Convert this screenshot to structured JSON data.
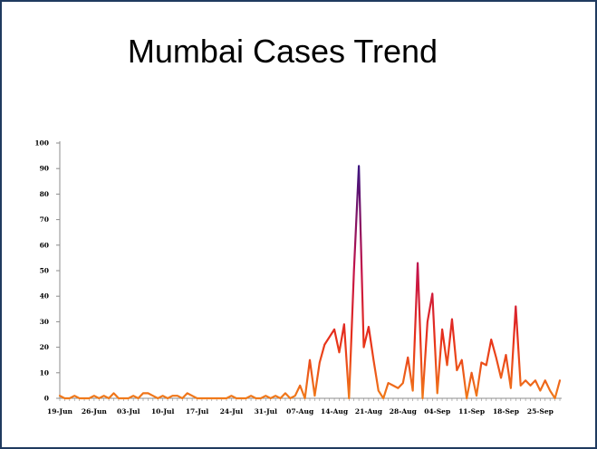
{
  "slide": {
    "title": "Mumbai Cases Trend"
  },
  "chart_data": {
    "type": "line",
    "title": "Mumbai Cases Trend",
    "xlabel": "",
    "ylabel": "",
    "ylim": [
      0,
      100
    ],
    "yticks": [
      0,
      10,
      20,
      30,
      40,
      50,
      60,
      70,
      80,
      90,
      100
    ],
    "x_tick_labels": [
      "19-Jun",
      "26-Jun",
      "03-Jul",
      "10-Jul",
      "17-Jul",
      "24-Jul",
      "31-Jul",
      "07-Aug",
      "14-Aug",
      "21-Aug",
      "28-Aug",
      "04-Sep",
      "11-Sep",
      "18-Sep",
      "25-Sep"
    ],
    "x_start": "19-Jun",
    "grid": false,
    "legend": "none",
    "line_gradient": [
      "#f07a1a",
      "#e8311a",
      "#c4124a",
      "#3a1480"
    ],
    "series": [
      {
        "values": [
          1,
          0,
          0,
          1,
          0,
          0,
          0,
          1,
          0,
          1,
          0,
          2,
          0,
          0,
          0,
          1,
          0,
          2,
          2,
          1,
          0,
          1,
          0,
          1,
          1,
          0,
          2,
          1,
          0,
          0,
          0,
          0,
          0,
          0,
          0,
          1,
          0,
          0,
          0,
          1,
          0,
          0,
          1,
          0,
          1,
          0,
          2,
          0,
          1,
          5,
          0,
          15,
          1,
          14,
          21,
          24,
          27,
          18,
          29,
          0,
          50,
          91,
          20,
          28,
          15,
          3,
          0,
          6,
          5,
          4,
          6,
          16,
          3,
          53,
          0,
          30,
          41,
          2,
          27,
          13,
          31,
          11,
          15,
          0,
          10,
          1,
          14,
          13,
          23,
          16,
          8,
          17,
          4,
          36,
          5,
          7,
          5,
          7,
          3,
          7,
          3,
          0,
          7
        ]
      }
    ]
  }
}
